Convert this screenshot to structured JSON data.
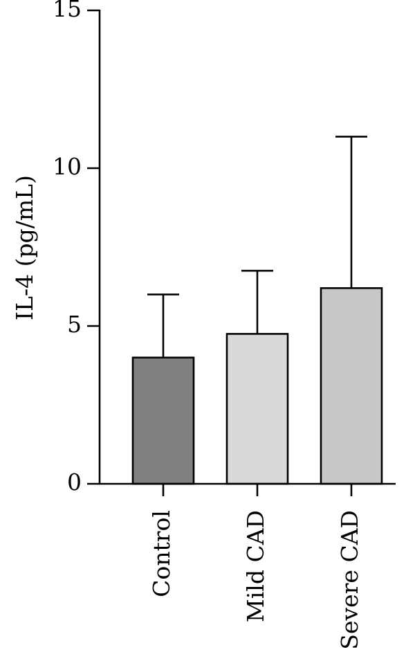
{
  "chart_data": {
    "type": "bar",
    "title": "",
    "xlabel": "",
    "ylabel": "IL-4 (pg/mL)",
    "ylim": [
      0,
      15
    ],
    "yticks": [
      0,
      5,
      10,
      15
    ],
    "ytick_labels": [
      "0",
      "5",
      "10",
      "15"
    ],
    "grid": false,
    "legend": "none",
    "categories": [
      "Control",
      "Mild CAD",
      "Severe CAD"
    ],
    "values": [
      4.0,
      4.75,
      6.2
    ],
    "error_upper": [
      6.0,
      6.75,
      11.0
    ],
    "colors": [
      "#808080",
      "#d9d9d9",
      "#c8c8c8"
    ]
  }
}
